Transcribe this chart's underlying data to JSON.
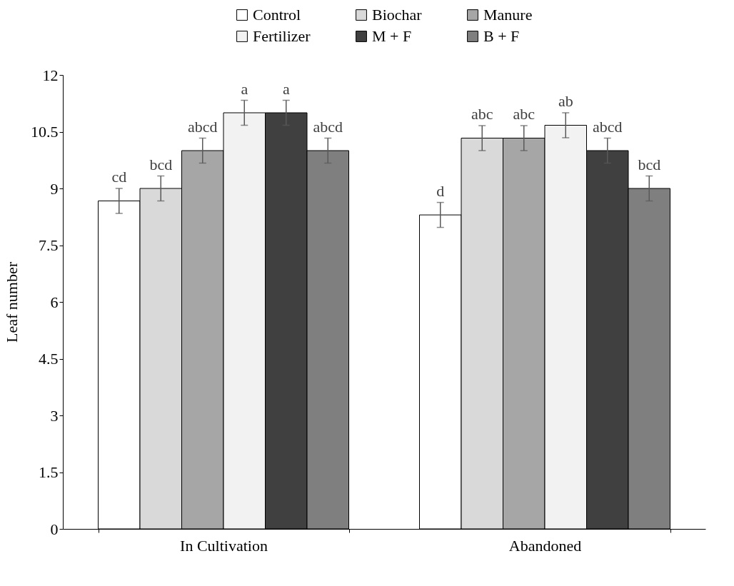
{
  "chart_data": {
    "type": "bar",
    "ylabel": "Leaf number",
    "categories": [
      "In Cultivation",
      "Abandoned"
    ],
    "series": [
      {
        "name": "Control",
        "color": "#ffffff",
        "values": [
          8.67,
          8.3
        ],
        "errors": [
          0.33,
          0.33
        ],
        "value_labels": [
          "cd",
          "d"
        ]
      },
      {
        "name": "Biochar",
        "color": "#d9d9d9",
        "values": [
          9.0,
          10.33
        ],
        "errors": [
          0.33,
          0.33
        ],
        "value_labels": [
          "bcd",
          "abc"
        ]
      },
      {
        "name": "Manure",
        "color": "#a6a6a6",
        "values": [
          10.0,
          10.33
        ],
        "errors": [
          0.33,
          0.33
        ],
        "value_labels": [
          "abcd",
          "abc"
        ]
      },
      {
        "name": "Fertilizer",
        "color": "#f2f2f2",
        "values": [
          11.0,
          10.67
        ],
        "errors": [
          0.33,
          0.33
        ],
        "value_labels": [
          "a",
          "ab"
        ]
      },
      {
        "name": "M + F",
        "color": "#404040",
        "values": [
          11.0,
          10.0
        ],
        "errors": [
          0.33,
          0.33
        ],
        "value_labels": [
          "a",
          "abcd"
        ]
      },
      {
        "name": "B + F",
        "color": "#7f7f7f",
        "values": [
          10.0,
          9.0
        ],
        "errors": [
          0.33,
          0.33
        ],
        "value_labels": [
          "abcd",
          "bcd"
        ]
      }
    ],
    "ylim": [
      0,
      12
    ],
    "yticks": [
      0,
      1.5,
      3,
      4.5,
      6,
      7.5,
      9,
      10.5,
      12
    ],
    "grid": false,
    "legend": "top"
  }
}
